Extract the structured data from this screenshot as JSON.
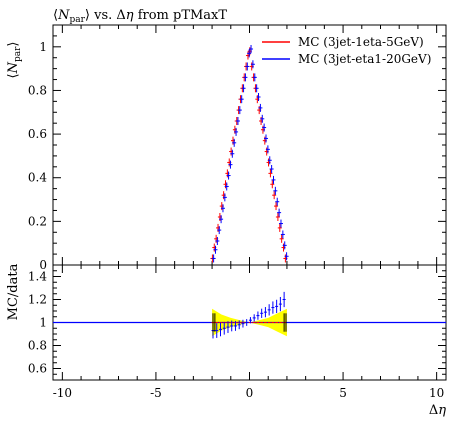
{
  "header": {
    "title": "⟨N_par⟩ vs. Δη from pTMaxT"
  },
  "legend": [
    {
      "label": "MC (3jet-1eta-5GeV)",
      "color": "#ff0000"
    },
    {
      "label": "MC (3jet-eta1-20GeV)",
      "color": "#0000ff"
    }
  ],
  "ratio_band_color": "#ffff00",
  "chart_data": [
    {
      "type": "scatter",
      "title": "⟨N_par⟩ vs. Δη from pTMaxT",
      "xlabel": "Δη",
      "ylabel": "⟨N_par⟩",
      "xlim": [
        -10.5,
        10.5
      ],
      "ylim": [
        0,
        1.1
      ],
      "yticks": [
        0,
        0.2,
        0.4,
        0.6,
        0.8,
        1
      ],
      "ytick_labels": [
        "0",
        "0.2",
        "0.4",
        "0.6",
        "0.8",
        "1"
      ],
      "series": [
        {
          "name": "MC (3jet-1eta-5GeV)",
          "x": [
            -1.95,
            -1.85,
            -1.75,
            -1.65,
            -1.55,
            -1.45,
            -1.35,
            -1.25,
            -1.15,
            -1.05,
            -0.95,
            -0.85,
            -0.75,
            -0.65,
            -0.55,
            -0.45,
            -0.35,
            -0.25,
            -0.15,
            -0.05,
            0.05,
            0.15,
            0.25,
            0.35,
            0.45,
            0.55,
            0.65,
            0.75,
            0.85,
            0.95,
            1.05,
            1.15,
            1.25,
            1.35,
            1.45,
            1.55,
            1.65,
            1.75,
            1.85,
            1.95
          ],
          "y": [
            0.03,
            0.08,
            0.12,
            0.17,
            0.22,
            0.27,
            0.32,
            0.37,
            0.42,
            0.47,
            0.52,
            0.57,
            0.62,
            0.66,
            0.71,
            0.76,
            0.81,
            0.86,
            0.91,
            0.96,
            0.98,
            0.91,
            0.86,
            0.81,
            0.76,
            0.71,
            0.66,
            0.62,
            0.57,
            0.52,
            0.47,
            0.42,
            0.37,
            0.32,
            0.27,
            0.22,
            0.17,
            0.12,
            0.08,
            0.03
          ]
        },
        {
          "name": "MC (3jet-eta1-20GeV)",
          "x": [
            -1.95,
            -1.85,
            -1.75,
            -1.65,
            -1.55,
            -1.45,
            -1.35,
            -1.25,
            -1.15,
            -1.05,
            -0.95,
            -0.85,
            -0.75,
            -0.65,
            -0.55,
            -0.45,
            -0.35,
            -0.25,
            -0.15,
            -0.05,
            0.05,
            0.15,
            0.25,
            0.35,
            0.45,
            0.55,
            0.65,
            0.75,
            0.85,
            0.95,
            1.05,
            1.15,
            1.25,
            1.35,
            1.45,
            1.55,
            1.65,
            1.75,
            1.85,
            1.95
          ],
          "y": [
            0.03,
            0.07,
            0.11,
            0.16,
            0.21,
            0.26,
            0.31,
            0.36,
            0.41,
            0.46,
            0.51,
            0.56,
            0.61,
            0.66,
            0.71,
            0.76,
            0.81,
            0.86,
            0.91,
            0.97,
            0.99,
            0.92,
            0.86,
            0.81,
            0.77,
            0.72,
            0.67,
            0.63,
            0.58,
            0.53,
            0.48,
            0.44,
            0.39,
            0.34,
            0.29,
            0.24,
            0.19,
            0.14,
            0.09,
            0.04
          ]
        }
      ]
    },
    {
      "type": "scatter",
      "xlabel": "Δη",
      "ylabel": "MC/data",
      "xlim": [
        -10.5,
        10.5
      ],
      "ylim": [
        0.5,
        1.5
      ],
      "xticks": [
        -10,
        -5,
        0,
        5,
        10
      ],
      "xtick_labels": [
        "-10",
        "-5",
        "0",
        "5",
        "10"
      ],
      "yticks": [
        0.6,
        0.8,
        1,
        1.2,
        1.4
      ],
      "ytick_labels": [
        "0.6",
        "0.8",
        "1",
        "1.2",
        "1.4"
      ],
      "band": {
        "x": [
          -2.0,
          -1.5,
          -1.0,
          -0.5,
          0.0,
          0.5,
          1.0,
          1.5,
          2.0
        ],
        "lower": [
          0.88,
          0.93,
          0.96,
          0.98,
          1.0,
          0.98,
          0.96,
          0.92,
          0.88
        ],
        "upper": [
          1.12,
          1.07,
          1.04,
          1.02,
          1.0,
          1.02,
          1.04,
          1.08,
          1.12
        ]
      },
      "series": [
        {
          "name": "MC (3jet-1eta-5GeV)",
          "x": [
            -1.95,
            -1.75,
            -1.55,
            -1.35,
            -1.15,
            -0.95,
            -0.75,
            -0.55,
            -0.35,
            -0.15,
            0.05,
            0.25,
            0.45,
            0.65,
            0.85,
            1.05,
            1.25,
            1.45,
            1.65,
            1.85
          ],
          "y": [
            1.0,
            1.0,
            1.0,
            1.0,
            1.0,
            1.0,
            1.0,
            1.0,
            1.0,
            1.0,
            1.0,
            1.0,
            1.0,
            1.0,
            1.0,
            1.0,
            1.0,
            1.0,
            1.0,
            1.0
          ]
        },
        {
          "name": "MC (3jet-eta1-20GeV)",
          "x": [
            -1.95,
            -1.75,
            -1.55,
            -1.35,
            -1.15,
            -0.95,
            -0.75,
            -0.55,
            -0.35,
            -0.15,
            0.05,
            0.25,
            0.45,
            0.65,
            0.85,
            1.05,
            1.25,
            1.45,
            1.65,
            1.85
          ],
          "y": [
            0.93,
            0.93,
            0.94,
            0.95,
            0.96,
            0.97,
            0.97,
            0.98,
            0.99,
            1.0,
            1.02,
            1.04,
            1.06,
            1.08,
            1.09,
            1.11,
            1.13,
            1.14,
            1.16,
            1.2
          ]
        }
      ]
    }
  ]
}
